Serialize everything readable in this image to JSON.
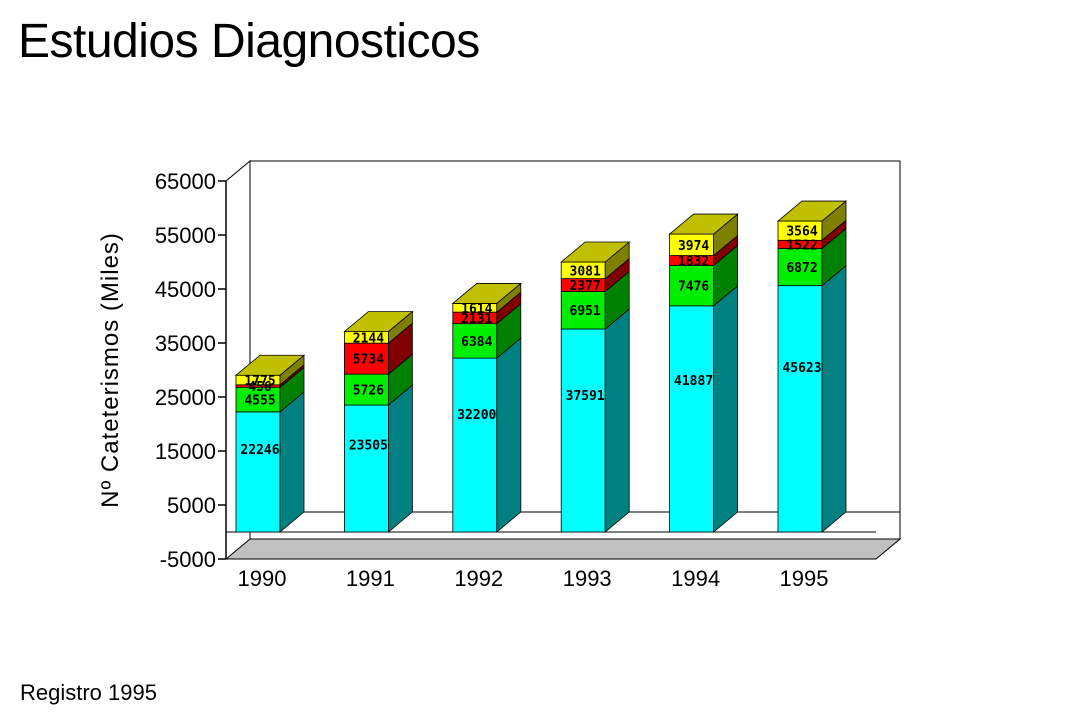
{
  "title": "Estudios Diagnosticos",
  "footer": "Registro 1995",
  "chart_data": {
    "type": "bar",
    "stacked": true,
    "three_d": true,
    "categories": [
      "1990",
      "1991",
      "1992",
      "1993",
      "1994",
      "1995"
    ],
    "ylabel": "Nº Cateterismos (Miles)",
    "xlabel": "",
    "ylim": [
      -5000,
      65000
    ],
    "yticks": [
      -5000,
      5000,
      15000,
      25000,
      35000,
      45000,
      55000,
      65000
    ],
    "grid": false,
    "legend": "none",
    "series": [
      {
        "values": [
          22246,
          23505,
          32200,
          37591,
          41887,
          45623
        ],
        "color": "#00ffff",
        "side_color": "#008080"
      },
      {
        "values": [
          4555,
          5726,
          6384,
          6951,
          7476,
          6872
        ],
        "color": "#00ee00",
        "side_color": "#008000"
      },
      {
        "values": [
          456,
          5734,
          2131,
          2377,
          1832,
          1522
        ],
        "color": "#ff0000",
        "side_color": "#800000"
      },
      {
        "values": [
          1775,
          2144,
          1614,
          3081,
          3974,
          3564
        ],
        "color": "#ffff00",
        "side_color": "#808000"
      }
    ]
  }
}
